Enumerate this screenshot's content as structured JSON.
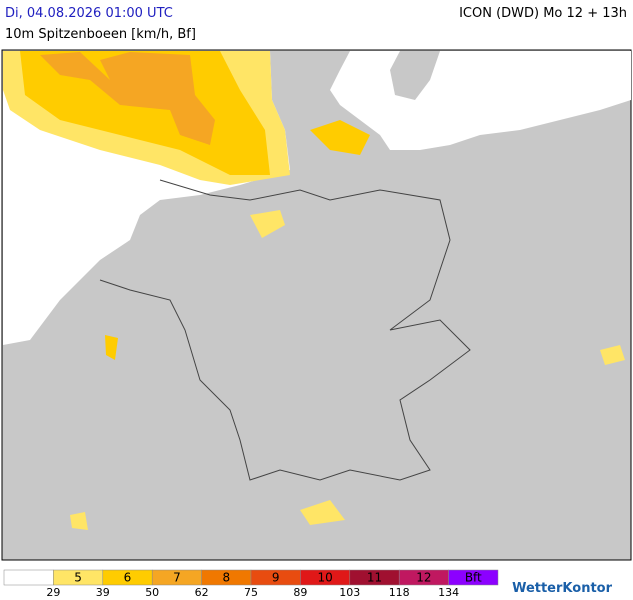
{
  "header": {
    "datetime": "Di, 04.08.2026 01:00 UTC",
    "model": "ICON (DWD) Mo 12 + 13h",
    "subtitle": "10m Spitzenboeen [km/h, Bf]"
  },
  "legend": {
    "classes": [
      {
        "color": "#ffffff"
      },
      {
        "label": "5",
        "color": "#ffe566"
      },
      {
        "label": "6",
        "color": "#ffcc00"
      },
      {
        "label": "7",
        "color": "#f5a623"
      },
      {
        "label": "8",
        "color": "#f07800"
      },
      {
        "label": "9",
        "color": "#e84c10"
      },
      {
        "label": "10",
        "color": "#e01818"
      },
      {
        "label": "11",
        "color": "#a01030"
      },
      {
        "label": "12",
        "color": "#c01860"
      },
      {
        "label": "Bft",
        "color": "#8c00ff"
      }
    ],
    "edges": [
      29,
      39,
      50,
      62,
      75,
      89,
      103,
      118,
      134
    ]
  },
  "logo": "WetterKontor"
}
